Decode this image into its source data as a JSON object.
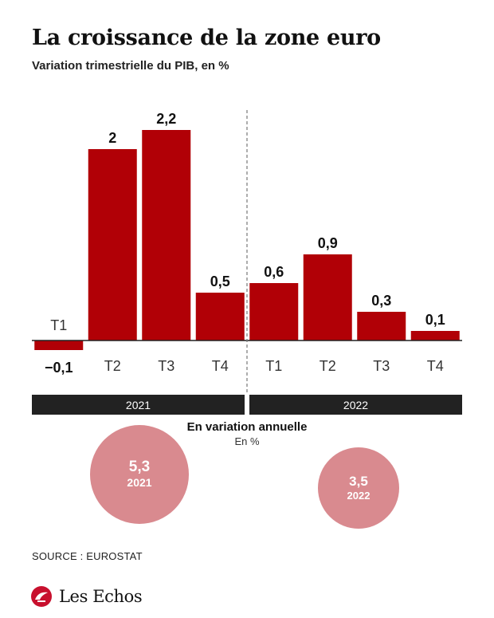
{
  "chart_data": {
    "type": "bar",
    "title": "La croissance de la zone euro",
    "subtitle": "Variation trimestrielle du PIB, en %",
    "categories": [
      "T1",
      "T2",
      "T3",
      "T4",
      "T1",
      "T2",
      "T3",
      "T4"
    ],
    "values": [
      -0.1,
      2,
      2.2,
      0.5,
      0.6,
      0.9,
      0.3,
      0.1
    ],
    "value_labels": [
      "−0,1",
      "2",
      "2,2",
      "0,5",
      "0,6",
      "0,9",
      "0,3",
      "0,1"
    ],
    "groups": [
      {
        "label": "2021",
        "count": 4
      },
      {
        "label": "2022",
        "count": 4
      }
    ],
    "ylim": [
      -0.15,
      2.4
    ],
    "bar_color": "#b10006",
    "grid": false
  },
  "annual": {
    "title": "En variation annuelle",
    "subtitle": "En %",
    "items": [
      {
        "value": "5,3",
        "year": "2021"
      },
      {
        "value": "3,5",
        "year": "2022"
      }
    ],
    "color": "#d98a8f"
  },
  "source": "SOURCE : EUROSTAT",
  "brand": {
    "name": "Les Echos",
    "icon": "les-echos-logo-icon"
  }
}
